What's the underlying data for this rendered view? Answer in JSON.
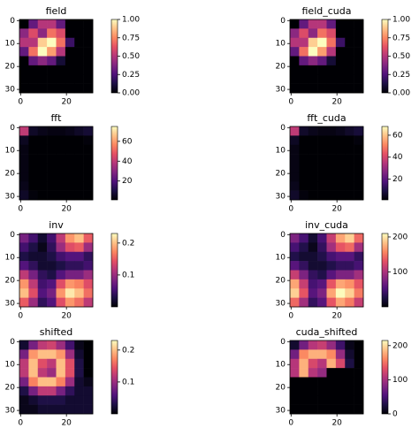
{
  "chart_data": [
    {
      "type": "heatmap",
      "title": "field",
      "colormap": "magma",
      "xlim": [
        -0.5,
        31.5
      ],
      "ylim": [
        31.5,
        -0.5
      ],
      "xticks": [
        0,
        20
      ],
      "yticks": [
        0,
        10,
        20,
        30
      ],
      "clim": [
        0,
        1
      ],
      "cticks": [
        {
          "value": 0,
          "label": "0.00"
        },
        {
          "value": 0.25,
          "label": "0.25"
        },
        {
          "value": 0.5,
          "label": "0.50"
        },
        {
          "value": 0.75,
          "label": "0.75"
        },
        {
          "value": 1,
          "label": "1.00"
        }
      ],
      "values": [
        [
          0,
          0.3,
          0.5,
          0.5,
          0.3,
          0,
          0,
          0
        ],
        [
          0.4,
          0.6,
          0.4,
          0.7,
          0.6,
          0,
          0,
          0
        ],
        [
          0.5,
          0.5,
          0.9,
          1,
          0.7,
          0.2,
          0,
          0
        ],
        [
          0.3,
          0.7,
          1,
          0.8,
          0.5,
          0,
          0,
          0
        ],
        [
          0,
          0.3,
          0.4,
          0.3,
          0.1,
          0,
          0,
          0
        ],
        [
          0,
          0,
          0,
          0,
          0,
          0,
          0,
          0
        ],
        [
          0,
          0,
          0,
          0,
          0,
          0,
          0,
          0
        ],
        [
          0,
          0,
          0,
          0,
          0,
          0,
          0,
          0
        ]
      ]
    },
    {
      "type": "heatmap",
      "title": "field_cuda",
      "colormap": "magma",
      "xlim": [
        -0.5,
        31.5
      ],
      "ylim": [
        31.5,
        -0.5
      ],
      "xticks": [
        0,
        20
      ],
      "yticks": [
        0,
        10,
        20,
        30
      ],
      "clim": [
        0,
        1
      ],
      "cticks": [
        {
          "value": 0,
          "label": "0.00"
        },
        {
          "value": 0.25,
          "label": "0.25"
        },
        {
          "value": 0.5,
          "label": "0.50"
        },
        {
          "value": 0.75,
          "label": "0.75"
        },
        {
          "value": 1,
          "label": "1.00"
        }
      ],
      "values": [
        [
          0,
          0.3,
          0.5,
          0.5,
          0.3,
          0,
          0,
          0
        ],
        [
          0.4,
          0.6,
          0.4,
          0.7,
          0.6,
          0,
          0,
          0
        ],
        [
          0.5,
          0.5,
          0.9,
          1,
          0.7,
          0.2,
          0,
          0
        ],
        [
          0.3,
          0.7,
          1,
          0.8,
          0.5,
          0,
          0,
          0
        ],
        [
          0,
          0.3,
          0.4,
          0.3,
          0.1,
          0,
          0,
          0
        ],
        [
          0,
          0,
          0,
          0,
          0,
          0,
          0,
          0
        ],
        [
          0,
          0,
          0,
          0,
          0,
          0,
          0,
          0
        ],
        [
          0,
          0,
          0,
          0,
          0,
          0,
          0,
          0
        ]
      ]
    },
    {
      "type": "heatmap",
      "title": "fft",
      "colormap": "magma",
      "xlim": [
        -0.5,
        31.5
      ],
      "ylim": [
        31.5,
        -0.5
      ],
      "xticks": [
        0,
        20
      ],
      "yticks": [
        0,
        10,
        20,
        30
      ],
      "clim": [
        1,
        75
      ],
      "cticks": [
        20,
        40,
        60
      ],
      "values": [
        [
          40,
          6,
          4,
          3,
          3,
          4,
          6,
          8
        ],
        [
          5,
          1,
          1,
          1,
          1,
          1,
          1,
          2
        ],
        [
          3,
          1,
          1,
          1,
          1,
          1,
          1,
          1
        ],
        [
          3,
          1,
          1,
          1,
          1,
          1,
          1,
          1
        ],
        [
          3,
          1,
          1,
          1,
          1,
          1,
          1,
          1
        ],
        [
          3,
          1,
          1,
          1,
          1,
          1,
          1,
          1
        ],
        [
          4,
          1,
          1,
          1,
          1,
          1,
          1,
          1
        ],
        [
          6,
          2,
          1,
          1,
          1,
          1,
          1,
          1
        ]
      ]
    },
    {
      "type": "heatmap",
      "title": "fft_cuda",
      "colormap": "magma",
      "xlim": [
        -0.5,
        31.5
      ],
      "ylim": [
        31.5,
        -0.5
      ],
      "xticks": [
        0,
        20
      ],
      "yticks": [
        0,
        10,
        20,
        30
      ],
      "clim": [
        1,
        68
      ],
      "cticks": [
        20,
        40,
        60
      ],
      "values": [
        [
          36,
          6,
          4,
          3,
          3,
          4,
          6,
          8
        ],
        [
          5,
          1,
          1,
          1,
          1,
          1,
          1,
          2
        ],
        [
          3,
          1,
          1,
          1,
          1,
          1,
          1,
          1
        ],
        [
          3,
          1,
          1,
          1,
          1,
          1,
          1,
          1
        ],
        [
          3,
          1,
          1,
          1,
          1,
          1,
          1,
          1
        ],
        [
          3,
          1,
          1,
          1,
          1,
          1,
          1,
          1
        ],
        [
          4,
          1,
          1,
          1,
          1,
          1,
          1,
          1
        ],
        [
          6,
          2,
          1,
          1,
          1,
          1,
          1,
          1
        ]
      ]
    },
    {
      "type": "heatmap",
      "title": "inv",
      "colormap": "magma",
      "xlim": [
        -0.5,
        31.5
      ],
      "ylim": [
        31.5,
        -0.5
      ],
      "xticks": [
        0,
        20
      ],
      "yticks": [
        0,
        10,
        20,
        30
      ],
      "clim": [
        0,
        0.23
      ],
      "cticks": [
        0.1,
        0.2
      ],
      "values": [
        [
          0.08,
          0.05,
          0.02,
          0.05,
          0.12,
          0.18,
          0.2,
          0.15
        ],
        [
          0.05,
          0.03,
          0.01,
          0.04,
          0.1,
          0.14,
          0.15,
          0.1
        ],
        [
          0.03,
          0.02,
          0.02,
          0.03,
          0.05,
          0.06,
          0.06,
          0.04
        ],
        [
          0.06,
          0.04,
          0.02,
          0.02,
          0.03,
          0.04,
          0.04,
          0.05
        ],
        [
          0.12,
          0.08,
          0.04,
          0.03,
          0.06,
          0.08,
          0.08,
          0.1
        ],
        [
          0.18,
          0.12,
          0.05,
          0.06,
          0.14,
          0.18,
          0.17,
          0.14
        ],
        [
          0.2,
          0.14,
          0.06,
          0.08,
          0.18,
          0.22,
          0.2,
          0.16
        ],
        [
          0.15,
          0.1,
          0.04,
          0.06,
          0.14,
          0.18,
          0.16,
          0.12
        ]
      ]
    },
    {
      "type": "heatmap",
      "title": "inv_cuda",
      "colormap": "magma",
      "xlim": [
        -0.5,
        31.5
      ],
      "ylim": [
        31.5,
        -0.5
      ],
      "xticks": [
        0,
        20
      ],
      "yticks": [
        0,
        10,
        20,
        30
      ],
      "clim": [
        0,
        210
      ],
      "cticks": [
        100,
        200
      ],
      "values": [
        [
          76,
          48,
          19,
          48,
          114,
          171,
          190,
          143
        ],
        [
          48,
          29,
          10,
          38,
          95,
          133,
          143,
          95
        ],
        [
          29,
          19,
          19,
          29,
          48,
          57,
          57,
          38
        ],
        [
          57,
          38,
          19,
          19,
          29,
          38,
          38,
          48
        ],
        [
          114,
          76,
          38,
          29,
          57,
          76,
          76,
          95
        ],
        [
          171,
          114,
          48,
          57,
          133,
          171,
          162,
          133
        ],
        [
          190,
          133,
          57,
          76,
          171,
          209,
          190,
          152
        ],
        [
          143,
          95,
          38,
          57,
          133,
          171,
          152,
          114
        ]
      ]
    },
    {
      "type": "heatmap",
      "title": "shifted",
      "colormap": "magma",
      "xlim": [
        -0.5,
        31.5
      ],
      "ylim": [
        31.5,
        -0.5
      ],
      "xticks": [
        0,
        20
      ],
      "yticks": [
        0,
        10,
        20,
        30
      ],
      "clim": [
        0,
        0.23
      ],
      "cticks": [
        0.1,
        0.2
      ],
      "values": [
        [
          0.02,
          0.08,
          0.12,
          0.13,
          0.1,
          0.05,
          0.01,
          0
        ],
        [
          0.08,
          0.18,
          0.2,
          0.2,
          0.18,
          0.1,
          0.02,
          0
        ],
        [
          0.12,
          0.2,
          0.14,
          0.12,
          0.2,
          0.14,
          0.03,
          0
        ],
        [
          0.12,
          0.2,
          0.12,
          0.1,
          0.2,
          0.14,
          0.03,
          0
        ],
        [
          0.08,
          0.17,
          0.2,
          0.2,
          0.17,
          0.1,
          0.02,
          0.01
        ],
        [
          0.03,
          0.08,
          0.12,
          0.12,
          0.08,
          0.04,
          0.02,
          0.02
        ],
        [
          0.01,
          0.02,
          0.03,
          0.03,
          0.03,
          0.02,
          0.02,
          0.02
        ],
        [
          0.01,
          0.01,
          0.02,
          0.02,
          0.02,
          0.02,
          0.02,
          0.02
        ]
      ]
    },
    {
      "type": "heatmap",
      "title": "cuda_shifted",
      "colormap": "magma",
      "xlim": [
        -0.5,
        31.5
      ],
      "ylim": [
        31.5,
        -0.5
      ],
      "xticks": [
        0,
        20
      ],
      "yticks": [
        0,
        10,
        20,
        30
      ],
      "clim": [
        0,
        215
      ],
      "cticks": [
        0,
        100,
        200
      ],
      "values": [
        [
          18,
          72,
          108,
          117,
          90,
          45,
          9,
          0
        ],
        [
          72,
          162,
          180,
          180,
          162,
          90,
          18,
          0
        ],
        [
          108,
          180,
          126,
          108,
          180,
          126,
          27,
          0
        ],
        [
          108,
          180,
          108,
          90,
          0,
          0,
          0,
          0
        ],
        [
          0,
          0,
          0,
          0,
          0,
          0,
          0,
          0
        ],
        [
          0,
          0,
          0,
          0,
          0,
          0,
          0,
          0
        ],
        [
          0,
          0,
          0,
          0,
          0,
          0,
          0,
          0
        ],
        [
          0,
          0,
          0,
          0,
          0,
          0,
          0,
          0
        ]
      ]
    }
  ]
}
